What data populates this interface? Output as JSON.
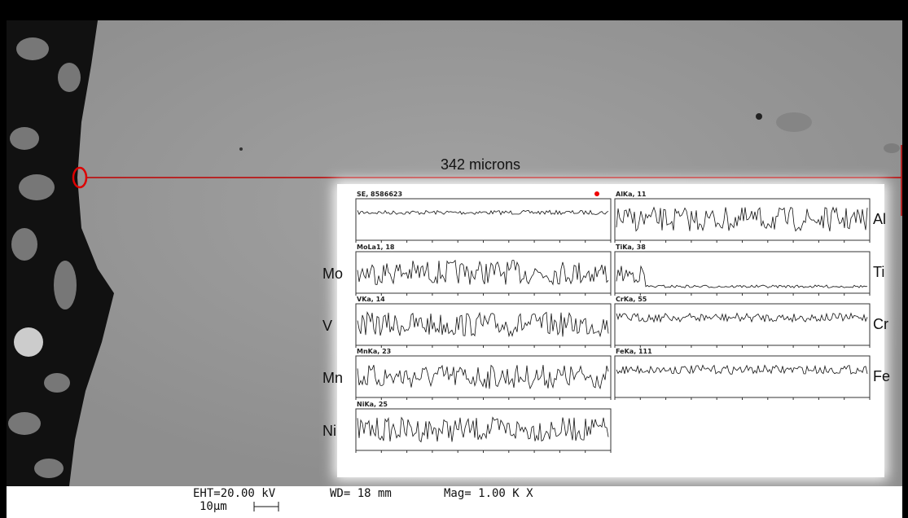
{
  "measurement": {
    "label": "342 microns"
  },
  "se_panel": {
    "header": "SE, 8586623"
  },
  "left_panels": [
    {
      "header": "MoLa1, 18",
      "element": "Mo"
    },
    {
      "header": "VKa, 14",
      "element": "V"
    },
    {
      "header": "MnKa, 23",
      "element": "Mn"
    },
    {
      "header": "NiKa, 25",
      "element": "Ni"
    }
  ],
  "right_panels": [
    {
      "header": "AlKa, 11",
      "element": "Al"
    },
    {
      "header": "TiKa, 38",
      "element": "Ti"
    },
    {
      "header": "CrKa, 55",
      "element": "Cr"
    },
    {
      "header": "FeKa, 111",
      "element": "Fe"
    }
  ],
  "footer": {
    "eht": "EHT=20.00 kV",
    "wd": "WD= 18 mm",
    "mag": "Mag= 1.00 K X",
    "scale": "10µm"
  }
}
